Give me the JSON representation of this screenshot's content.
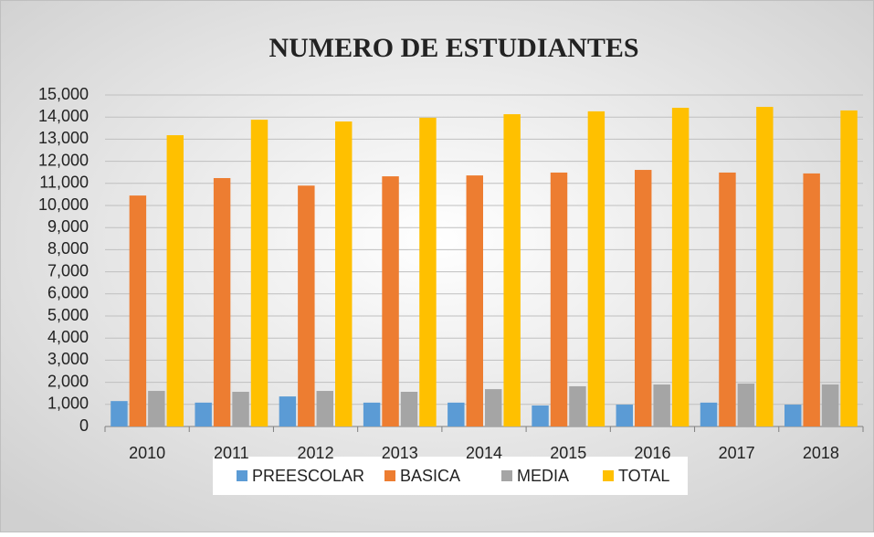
{
  "chart_data": {
    "type": "bar",
    "title": "NUMERO DE ESTUDIANTES",
    "categories": [
      "2010",
      "2011",
      "2012",
      "2013",
      "2014",
      "2015",
      "2016",
      "2017",
      "2018"
    ],
    "series": [
      {
        "name": "PREESCOLAR",
        "color": "#5b9bd5",
        "values": [
          1150,
          1080,
          1360,
          1080,
          1080,
          950,
          990,
          1080,
          990
        ]
      },
      {
        "name": "BASICA",
        "color": "#ed7d31",
        "values": [
          10450,
          11240,
          10900,
          11320,
          11360,
          11490,
          11610,
          11490,
          11450
        ]
      },
      {
        "name": "MEDIA",
        "color": "#a5a5a5",
        "values": [
          1610,
          1570,
          1610,
          1570,
          1690,
          1820,
          1900,
          1940,
          1900
        ]
      },
      {
        "name": "TOTAL",
        "color": "#ffc000",
        "values": [
          13180,
          13880,
          13800,
          13970,
          14130,
          14260,
          14420,
          14460,
          14300
        ]
      }
    ],
    "ylim": [
      0,
      15000
    ],
    "yticks": [
      0,
      {
        "value": 1000,
        "label": "1,000"
      },
      {
        "value": 2000,
        "label": "2,000"
      },
      {
        "value": 3000,
        "label": "3,000"
      },
      {
        "value": 4000,
        "label": "4,000"
      },
      {
        "value": 5000,
        "label": "5,000"
      },
      {
        "value": 6000,
        "label": "6,000"
      },
      {
        "value": 7000,
        "label": "7,000"
      },
      {
        "value": 8000,
        "label": "8,000"
      },
      {
        "value": 9000,
        "label": "9,000"
      },
      {
        "value": 10000,
        "label": "10,000"
      },
      {
        "value": 11000,
        "label": "11,000"
      },
      {
        "value": 12000,
        "label": "12,000"
      },
      {
        "value": 13000,
        "label": "13,000"
      },
      {
        "value": 14000,
        "label": "14,000"
      },
      {
        "value": 15000,
        "label": "15,000"
      }
    ],
    "grid": true,
    "legend": "bottom"
  }
}
